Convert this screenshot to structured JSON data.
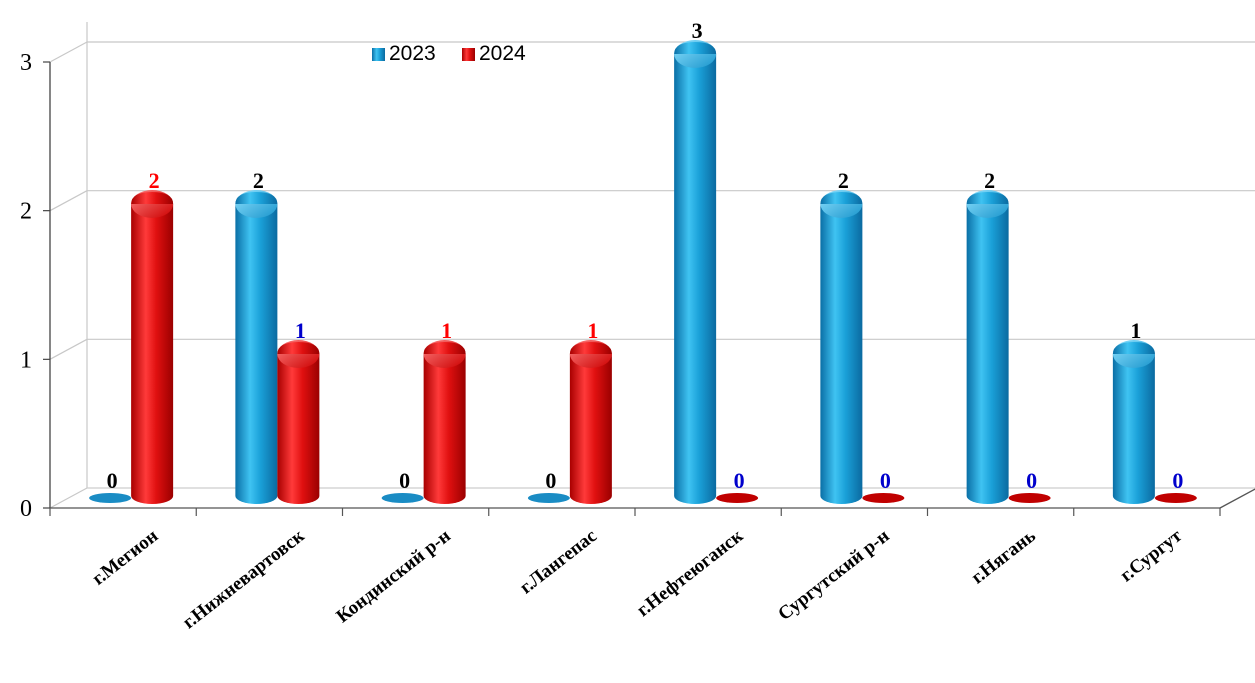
{
  "chart_data": {
    "type": "bar",
    "categories": [
      "г.Мегион",
      "г.Нижневартовск",
      "Кондинский р-н",
      "г.Лангепас",
      "г.Нефтеюганск",
      "Сургутский р-н",
      "г.Нягань",
      "г.Сургут"
    ],
    "series": [
      {
        "name": "2023",
        "values": [
          0,
          2,
          0,
          0,
          3,
          2,
          2,
          1
        ],
        "color": "#1aa0d8"
      },
      {
        "name": "2024",
        "values": [
          2,
          1,
          1,
          1,
          0,
          0,
          0,
          0
        ],
        "color": "#e01010"
      }
    ],
    "data_labels": {
      "2023": [
        "0",
        "2",
        "0",
        "0",
        "3",
        "2",
        "2",
        "1"
      ],
      "2024": [
        "2",
        "1",
        "1",
        "1",
        "0",
        "0",
        "0",
        "0"
      ]
    },
    "data_label_colors": {
      "2023": [
        "#000000",
        "#000000",
        "#000000",
        "#000000",
        "#000000",
        "#000000",
        "#000000",
        "#000000"
      ],
      "2024": [
        "#ff0000",
        "#0000cc",
        "#ff0000",
        "#ff0000",
        "#0000cc",
        "#0000cc",
        "#0000cc",
        "#0000cc"
      ]
    },
    "y_ticks": [
      "0",
      "1",
      "2",
      "3"
    ],
    "ylim": [
      0,
      3
    ],
    "grid": true,
    "legend_position": "top-left",
    "title": "",
    "xlabel": "",
    "ylabel": ""
  }
}
